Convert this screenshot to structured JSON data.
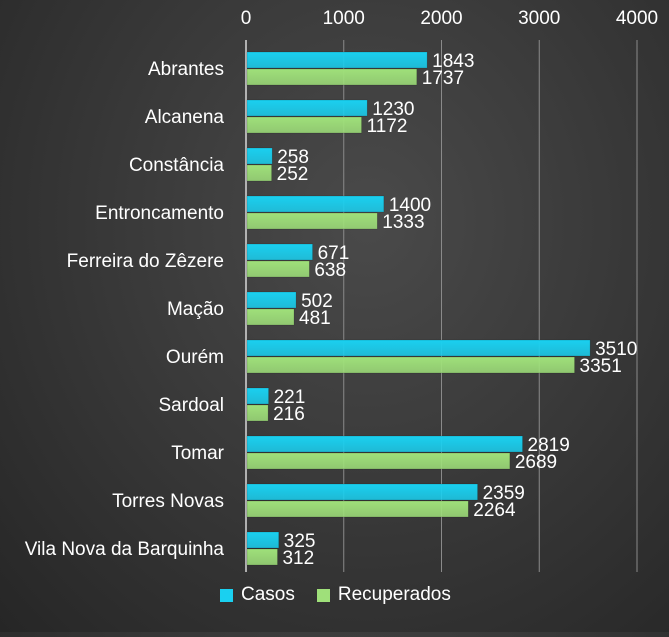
{
  "chart_data": {
    "type": "bar",
    "orientation": "horizontal",
    "categories": [
      "Abrantes",
      "Alcanena",
      "Constância",
      "Entroncamento",
      "Ferreira do Zêzere",
      "Mação",
      "Ourém",
      "Sardoal",
      "Tomar",
      "Torres Novas",
      "Vila Nova da Barquinha"
    ],
    "series": [
      {
        "name": "Casos",
        "color": "#1ad0f0",
        "values": [
          1843,
          1230,
          258,
          1400,
          671,
          502,
          3510,
          221,
          2819,
          2359,
          325
        ]
      },
      {
        "name": "Recuperados",
        "color": "#9fe07a",
        "values": [
          1737,
          1172,
          252,
          1333,
          638,
          481,
          3351,
          216,
          2689,
          2264,
          312
        ]
      }
    ],
    "xlim": [
      0,
      4000
    ],
    "xticks": [
      0,
      1000,
      2000,
      3000,
      4000
    ],
    "x_axis_position": "top",
    "grid": true,
    "data_labels": true,
    "legend_position": "bottom",
    "title": "",
    "xlabel": "",
    "ylabel": ""
  },
  "colors": {
    "text": "#ffffff",
    "gridline": "#8a8a8a",
    "background": "#3a3a3a"
  }
}
